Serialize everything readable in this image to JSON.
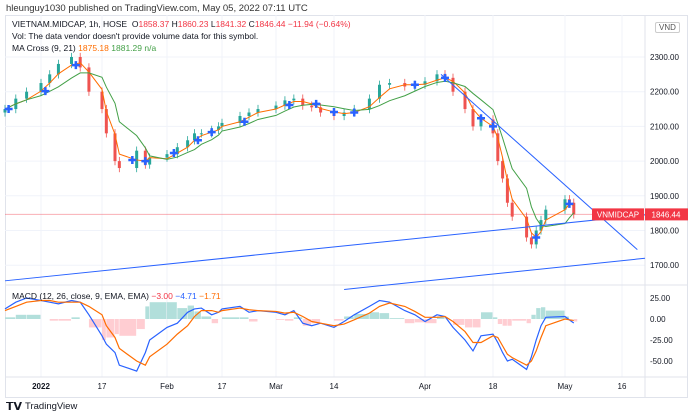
{
  "publisher_line": "hleunguy1030 published on TradingView.com, May 05, 2022 07:11 UTC",
  "legend": {
    "symbol": "VIETNAM.MIDCAP, 1h, HOSE",
    "o_label": "O",
    "o": "1858.37",
    "h_label": "H",
    "h": "1860.23",
    "l_label": "L",
    "l": "1841.32",
    "c_label": "C",
    "c": "1846.44",
    "change": "−11.94 (−0.64%)",
    "vol": "Vol: The data vendor doesn't provide volume data for this symbol.",
    "ma_label": "MA Cross (9, 21)",
    "ma_fast": "1875.18",
    "ma_slow": "1881.29",
    "ma_extra": "n/a",
    "macd_label": "MACD (12, 26, close, 9, EMA, EMA)",
    "macd_hist": "−3.00",
    "macd_val": "−4.71",
    "macd_signal": "−1.71"
  },
  "currency_badge": "VND",
  "price_tag": {
    "symbol": "VNMIDCAP",
    "value": "1846.44"
  },
  "footer_brand": "TradingView",
  "colors": {
    "up": "#26a69a",
    "down": "#ef5350",
    "ma_fast": "#ff6d00",
    "ma_slow": "#43a047",
    "macd": "#2962ff",
    "signal": "#ff6d00",
    "trendline": "#2962ff",
    "cross": "#2962ff",
    "price_line": "#f23645"
  },
  "chart_data": {
    "type": "candlestick",
    "symbol": "VIETNAM.MIDCAP",
    "interval": "1h",
    "price_axis": {
      "ticks": [
        "2300.00",
        "2200.00",
        "2100.00",
        "2000.00",
        "1900.00",
        "1800.00",
        "1700.00"
      ],
      "ylim": [
        1660,
        2420
      ]
    },
    "time_axis": {
      "ticks": [
        "2022",
        "17",
        "Feb",
        "17",
        "Mar",
        "14",
        "Apr",
        "18",
        "May",
        "16"
      ]
    },
    "dates": [
      "2021-12-24",
      "2021-12-27",
      "2021-12-30",
      "2022-01-03",
      "2022-01-05",
      "2022-01-07",
      "2022-01-10",
      "2022-01-12",
      "2022-01-14",
      "2022-01-17",
      "2022-01-18",
      "2022-01-20",
      "2022-01-21",
      "2022-01-25",
      "2022-01-27",
      "2022-01-28",
      "2022-02-01",
      "2022-02-04",
      "2022-02-07",
      "2022-02-09",
      "2022-02-11",
      "2022-02-14",
      "2022-02-16",
      "2022-02-17",
      "2022-02-21",
      "2022-02-23",
      "2022-02-25",
      "2022-03-01",
      "2022-03-03",
      "2022-03-05",
      "2022-03-07",
      "2022-03-09",
      "2022-03-11",
      "2022-03-14",
      "2022-03-16",
      "2022-03-18",
      "2022-03-21",
      "2022-03-23",
      "2022-03-25",
      "2022-03-28",
      "2022-03-30",
      "2022-04-01",
      "2022-04-04",
      "2022-04-06",
      "2022-04-08",
      "2022-04-11",
      "2022-04-13",
      "2022-04-15",
      "2022-04-18",
      "2022-04-19",
      "2022-04-20",
      "2022-04-21",
      "2022-04-22",
      "2022-04-25",
      "2022-04-26",
      "2022-04-27",
      "2022-04-28",
      "2022-04-29",
      "2022-05-03",
      "2022-05-04",
      "2022-05-05"
    ],
    "close": [
      2150,
      2180,
      2200,
      2225,
      2250,
      2280,
      2300,
      2270,
      2200,
      2150,
      2080,
      2000,
      1980,
      2030,
      1990,
      2010,
      2020,
      2040,
      2060,
      2080,
      2080,
      2090,
      2100,
      2110,
      2130,
      2140,
      2150,
      2160,
      2175,
      2180,
      2160,
      2155,
      2140,
      2130,
      2140,
      2150,
      2180,
      2220,
      2225,
      2215,
      2220,
      2230,
      2250,
      2240,
      2200,
      2150,
      2100,
      2120,
      2080,
      2000,
      1950,
      1880,
      1840,
      1780,
      1760,
      1800,
      1830,
      1860,
      1890,
      1880,
      1846.44
    ],
    "ma_cross_dates": [
      "2021-12-25",
      "2022-01-04",
      "2022-01-11",
      "2022-01-24",
      "2022-01-27",
      "2022-02-03",
      "2022-02-10",
      "2022-02-14",
      "2022-02-22",
      "2022-03-04",
      "2022-03-10",
      "2022-03-14",
      "2022-03-18",
      "2022-03-30",
      "2022-04-06",
      "2022-04-15",
      "2022-04-18",
      "2022-04-27",
      "2022-05-04"
    ],
    "trendlines": [
      {
        "from": [
          "2021-12-24",
          1655
        ],
        "to": [
          "2022-05-25",
          1845
        ]
      },
      {
        "from": [
          "2022-03-16",
          1630
        ],
        "to": [
          "2022-05-25",
          1720
        ]
      },
      {
        "from": [
          "2022-04-05",
          2250
        ],
        "to": [
          "2022-05-22",
          1745
        ]
      }
    ],
    "macd": {
      "axis_ticks": [
        "25.00",
        "0.00",
        "-25.00",
        "-50.00"
      ],
      "macd": [
        12,
        20,
        25,
        22,
        20,
        18,
        22,
        20,
        5,
        -20,
        -30,
        -40,
        -55,
        -62,
        -40,
        -25,
        -10,
        -5,
        8,
        12,
        13,
        5,
        8,
        12,
        15,
        8,
        10,
        8,
        5,
        10,
        -5,
        -8,
        -5,
        -10,
        -3,
        5,
        15,
        22,
        20,
        10,
        5,
        -3,
        5,
        3,
        -10,
        -25,
        -38,
        -20,
        -18,
        -28,
        -40,
        -50,
        -48,
        -60,
        -45,
        -25,
        -8,
        2,
        3,
        -1,
        -4.71
      ],
      "signal": [
        10,
        15,
        20,
        22,
        22,
        20,
        20,
        20,
        15,
        5,
        -8,
        -22,
        -35,
        -50,
        -55,
        -45,
        -30,
        -18,
        -8,
        3,
        10,
        10,
        8,
        10,
        13,
        11,
        10,
        9,
        7,
        8,
        3,
        -3,
        -5,
        -8,
        -6,
        -1,
        7,
        15,
        19,
        15,
        9,
        2,
        2,
        3,
        -3,
        -15,
        -28,
        -28,
        -20,
        -22,
        -32,
        -42,
        -46,
        -55,
        -50,
        -38,
        -22,
        -8,
        0,
        -1,
        -1.71
      ]
    }
  }
}
